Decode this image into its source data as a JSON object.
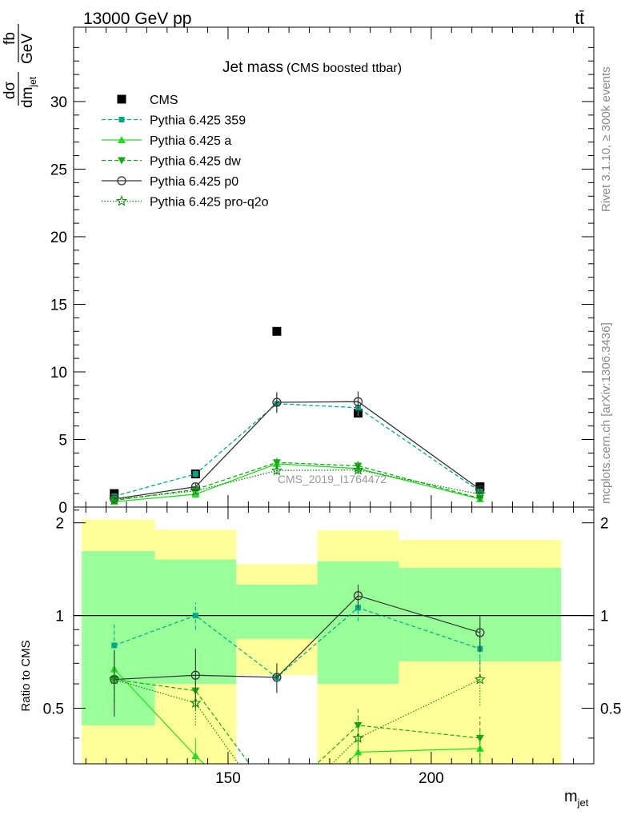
{
  "header": {
    "left": "13000 GeV pp",
    "right": "tt̄"
  },
  "side": {
    "rivet": "Rivet 3.1.10, ≥ 300k events",
    "mcplots": "mcplots.cern.ch [arXiv:1306.3436]"
  },
  "chart_data": [
    {
      "type": "line",
      "title": "Jet mass",
      "subtitle": "(CMS boosted ttbar)",
      "watermark": "CMS_2019_I1764472",
      "ylabel_num": "dσ",
      "ylabel_den": "dm",
      "ylabel_den_sub": "jet",
      "ylabel_unit_num": "fb",
      "ylabel_unit_den": "GeV",
      "ylim": [
        0,
        35.5
      ],
      "yticks": [
        0,
        5,
        10,
        15,
        20,
        25,
        30
      ],
      "xlim": [
        112,
        240
      ],
      "x": [
        122,
        142,
        162,
        182,
        212
      ],
      "legend_position": "top-left",
      "series": [
        {
          "name": "CMS",
          "color": "#000000",
          "marker": "square",
          "style": "none",
          "values": [
            1.0,
            2.45,
            13.0,
            6.95,
            1.5
          ]
        },
        {
          "name": "Pythia 6.425 359",
          "color": "#00aa88",
          "marker": "small-square",
          "style": "dashed",
          "values": [
            0.8,
            2.45,
            7.65,
            7.35,
            1.15
          ],
          "errors": [
            0.15,
            0.25,
            0.7,
            0.6,
            0.25
          ]
        },
        {
          "name": "Pythia 6.425 a",
          "color": "#22dd22",
          "marker": "triangle-up",
          "style": "solid",
          "values": [
            0.4,
            0.95,
            3.2,
            2.85,
            0.6
          ],
          "errors": [
            0.1,
            0.15,
            0.35,
            0.35,
            0.15
          ]
        },
        {
          "name": "Pythia 6.425 dw",
          "color": "#11aa11",
          "marker": "triangle-down",
          "style": "dashed",
          "values": [
            0.5,
            1.3,
            3.3,
            3.05,
            0.65
          ],
          "errors": [
            0.1,
            0.2,
            0.35,
            0.35,
            0.15
          ]
        },
        {
          "name": "Pythia 6.425 p0",
          "color": "#333333",
          "marker": "circle-open",
          "style": "solid",
          "values": [
            0.6,
            1.5,
            7.75,
            7.8,
            1.3
          ],
          "errors": [
            0.15,
            0.25,
            0.75,
            0.75,
            0.25
          ]
        },
        {
          "name": "Pythia 6.425 pro-q2o",
          "color": "#118811",
          "marker": "star-open",
          "style": "dotted",
          "values": [
            0.55,
            1.2,
            2.7,
            2.75,
            0.95
          ],
          "errors": [
            0.1,
            0.2,
            0.3,
            0.3,
            0.2
          ]
        }
      ]
    },
    {
      "type": "line",
      "ylabel": "Ratio to CMS",
      "xlabel": "m",
      "xlabel_sub": "jet",
      "ylim": [
        0.33,
        2.25
      ],
      "yticks": [
        0.5,
        1,
        2
      ],
      "ytick_labels": [
        "0.5",
        "1",
        "2"
      ],
      "xlim": [
        112,
        240
      ],
      "xticks": [
        150,
        200
      ],
      "reference_line": 1,
      "bands": [
        {
          "x0": 114,
          "x1": 132,
          "green": [
            0.44,
            1.62
          ],
          "yellow": [
            0.33,
            2.05
          ]
        },
        {
          "x0": 132,
          "x1": 152,
          "green": [
            0.6,
            1.52
          ],
          "yellow": [
            0.33,
            1.9
          ]
        },
        {
          "x0": 152,
          "x1": 172,
          "green": [
            0.84,
            1.26
          ],
          "yellow": [
            0.64,
            1.47
          ]
        },
        {
          "x0": 172,
          "x1": 192,
          "green": [
            0.6,
            1.5
          ],
          "yellow": [
            0.33,
            1.89
          ]
        },
        {
          "x0": 192,
          "x1": 232,
          "green": [
            0.71,
            1.43
          ],
          "yellow": [
            0.33,
            1.76
          ]
        }
      ],
      "series": [
        {
          "name": "Pythia 6.425 359",
          "values": [
            0.8,
            1.0,
            0.63,
            1.06,
            0.78
          ],
          "errors": [
            0.15,
            0.1,
            0.06,
            0.1,
            0.12
          ]
        },
        {
          "name": "Pythia 6.425 a",
          "values": [
            0.67,
            0.35,
            0.2,
            0.36,
            0.37
          ],
          "errors": [
            0.1,
            0.05,
            0.03,
            0.05,
            0.05
          ]
        },
        {
          "name": "Pythia 6.425 dw",
          "values": [
            0.62,
            0.57,
            0.25,
            0.44,
            0.4
          ],
          "errors": [
            0.1,
            0.08,
            0.03,
            0.06,
            0.07
          ]
        },
        {
          "name": "Pythia 6.425 p0",
          "values": [
            0.62,
            0.64,
            0.63,
            1.16,
            0.88
          ],
          "errors": [
            0.15,
            0.14,
            0.07,
            0.1,
            0.12
          ]
        },
        {
          "name": "Pythia 6.425 pro-q2o",
          "values": [
            0.62,
            0.52,
            0.22,
            0.4,
            0.62
          ],
          "errors": [
            0.1,
            0.08,
            0.03,
            0.06,
            0.11
          ]
        }
      ]
    }
  ]
}
